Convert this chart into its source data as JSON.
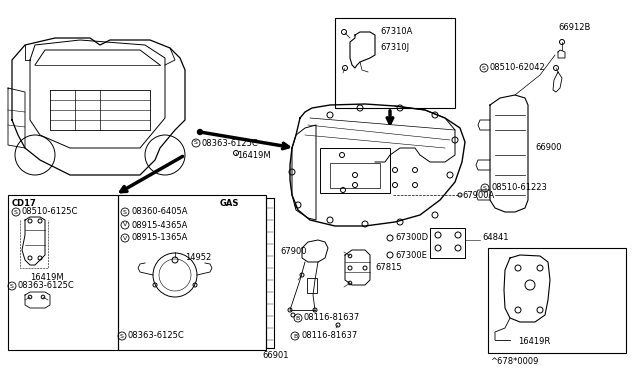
{
  "bg_color": "#ffffff",
  "diagram_number": "^678*0009",
  "figsize": [
    6.4,
    3.72
  ],
  "dpi": 100,
  "xlim": [
    0,
    640
  ],
  "ylim": [
    0,
    372
  ],
  "font_main": 6.5,
  "font_label": 6.0
}
